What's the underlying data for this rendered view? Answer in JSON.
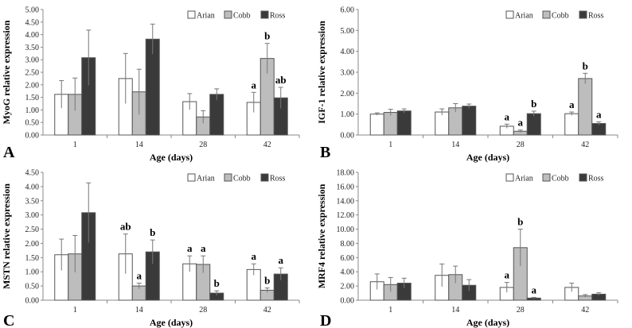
{
  "colors": {
    "arian": "#ffffff",
    "cobb": "#bdbdbd",
    "ross": "#3a3a3a",
    "axis": "#888888",
    "error": "#777777"
  },
  "chart_data": [
    {
      "panel": "A",
      "type": "bar",
      "title": "",
      "xlabel": "Age (days)",
      "ylabel": "MyoG relative expression",
      "ylim": [
        0,
        5
      ],
      "yticks": [
        "0.00",
        "0.50",
        "1.00",
        "1.50",
        "2.00",
        "2.50",
        "3.00",
        "3.50",
        "4.00",
        "4.50",
        "5.00"
      ],
      "categories": [
        "1",
        "14",
        "28",
        "42"
      ],
      "legend": [
        "Arian",
        "Cobb",
        "Ross"
      ],
      "legend_position": "top-right",
      "series": [
        {
          "name": "Arian",
          "values": [
            1.62,
            2.25,
            1.33,
            1.3
          ],
          "errors": [
            0.55,
            1.0,
            0.32,
            0.4
          ],
          "labels": [
            "",
            "",
            "",
            "a"
          ]
        },
        {
          "name": "Cobb",
          "values": [
            1.62,
            1.72,
            0.72,
            3.05
          ],
          "errors": [
            0.65,
            0.9,
            0.25,
            0.6
          ],
          "labels": [
            "",
            "",
            "",
            "b"
          ]
        },
        {
          "name": "Ross",
          "values": [
            3.08,
            3.82,
            1.62,
            1.48
          ],
          "errors": [
            1.1,
            0.6,
            0.22,
            0.42
          ],
          "labels": [
            "",
            "",
            "",
            "ab"
          ]
        }
      ]
    },
    {
      "panel": "B",
      "type": "bar",
      "title": "",
      "xlabel": "Age (days)",
      "ylabel": "IGF-1 relative expression",
      "ylim": [
        0,
        6
      ],
      "yticks": [
        "0.00",
        "1.00",
        "2.00",
        "3.00",
        "4.00",
        "5.00",
        "6.00"
      ],
      "categories": [
        "1",
        "14",
        "28",
        "42"
      ],
      "legend": [
        "Arian",
        "Cobb",
        "Ross"
      ],
      "legend_position": "top-right",
      "series": [
        {
          "name": "Arian",
          "values": [
            1.0,
            1.1,
            0.42,
            1.02
          ],
          "errors": [
            0.06,
            0.15,
            0.1,
            0.08
          ],
          "labels": [
            "",
            "",
            "a",
            "a"
          ]
        },
        {
          "name": "Cobb",
          "values": [
            1.08,
            1.3,
            0.18,
            2.7
          ],
          "errors": [
            0.15,
            0.2,
            0.06,
            0.25
          ],
          "labels": [
            "",
            "",
            "a",
            "b"
          ]
        },
        {
          "name": "Ross",
          "values": [
            1.15,
            1.38,
            1.02,
            0.55
          ],
          "errors": [
            0.1,
            0.1,
            0.12,
            0.08
          ],
          "labels": [
            "",
            "",
            "b",
            "a"
          ]
        }
      ]
    },
    {
      "panel": "C",
      "type": "bar",
      "title": "",
      "xlabel": "Age (days)",
      "ylabel": "MSTN relative expression",
      "ylim": [
        0,
        4.5
      ],
      "yticks": [
        "0.00",
        "0.50",
        "1.00",
        "1.50",
        "2.00",
        "2.50",
        "3.00",
        "3.50",
        "4.00",
        "4.50"
      ],
      "categories": [
        "1",
        "14",
        "28",
        "42"
      ],
      "legend": [
        "Arian",
        "Cobb",
        "Ross"
      ],
      "legend_position": "top-right",
      "series": [
        {
          "name": "Arian",
          "values": [
            1.6,
            1.63,
            1.28,
            1.08
          ],
          "errors": [
            0.55,
            0.7,
            0.28,
            0.2
          ],
          "labels": [
            "",
            "ab",
            "a",
            "a"
          ]
        },
        {
          "name": "Cobb",
          "values": [
            1.63,
            0.5,
            1.26,
            0.35
          ],
          "errors": [
            0.65,
            0.1,
            0.3,
            0.08
          ],
          "labels": [
            "",
            "a",
            "a",
            "b"
          ]
        },
        {
          "name": "Ross",
          "values": [
            3.08,
            1.7,
            0.25,
            0.92
          ],
          "errors": [
            1.05,
            0.42,
            0.08,
            0.22
          ],
          "labels": [
            "",
            "b",
            "b",
            "a"
          ]
        }
      ]
    },
    {
      "panel": "D",
      "type": "bar",
      "title": "",
      "xlabel": "Age (days)",
      "ylabel": "MRF4 relative expression",
      "ylim": [
        0,
        18
      ],
      "yticks": [
        "0.00",
        "2.00",
        "4.00",
        "6.00",
        "8.00",
        "10.00",
        "12.00",
        "14.00",
        "16.00",
        "18.00"
      ],
      "categories": [
        "1",
        "14",
        "28",
        "42"
      ],
      "legend": [
        "Arian",
        "Cobb",
        "Ross"
      ],
      "legend_position": "top-right",
      "series": [
        {
          "name": "Arian",
          "values": [
            2.6,
            3.5,
            1.8,
            1.8
          ],
          "errors": [
            1.1,
            1.6,
            0.7,
            0.6
          ],
          "labels": [
            "",
            "",
            "a",
            ""
          ]
        },
        {
          "name": "Cobb",
          "values": [
            2.2,
            3.6,
            7.4,
            0.6
          ],
          "errors": [
            1.0,
            1.2,
            2.6,
            0.2
          ],
          "labels": [
            "",
            "",
            "b",
            ""
          ]
        },
        {
          "name": "Ross",
          "values": [
            2.4,
            2.1,
            0.3,
            0.85
          ],
          "errors": [
            0.7,
            0.8,
            0.1,
            0.2
          ],
          "labels": [
            "",
            "",
            "a",
            ""
          ]
        }
      ]
    }
  ]
}
